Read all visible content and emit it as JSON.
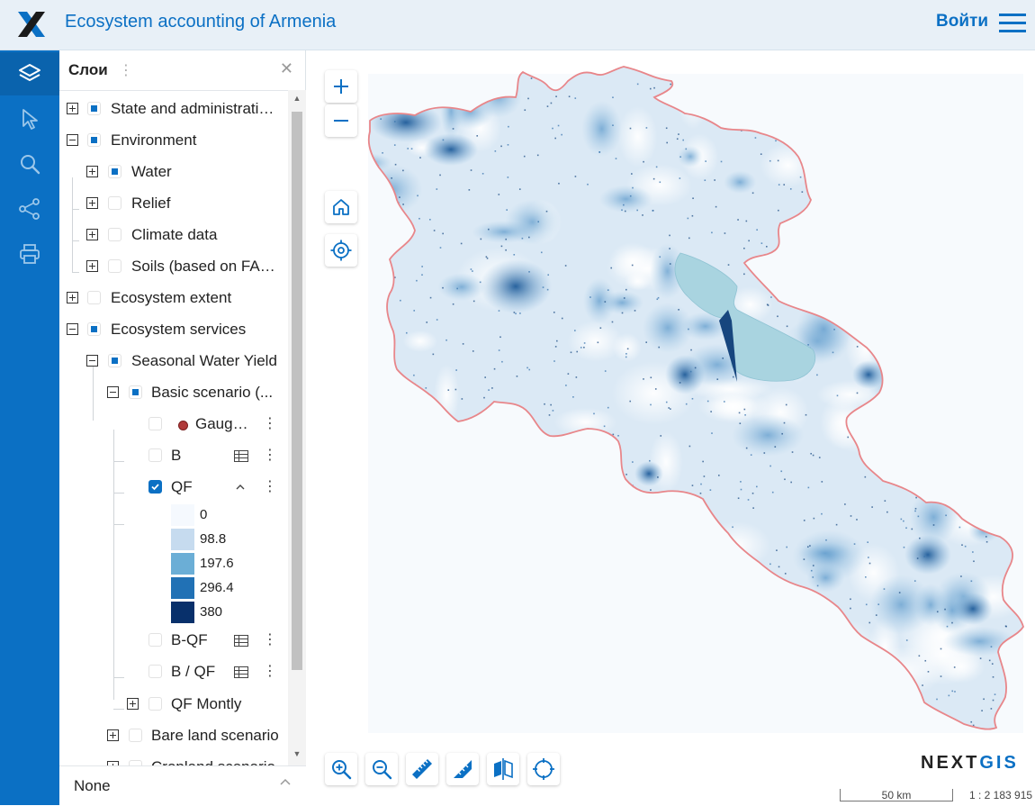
{
  "header": {
    "title": "Ecosystem accounting of Armenia",
    "login_label": "Войти",
    "logo_icon": "nextgis-x-logo",
    "menu_icon": "hamburger-icon"
  },
  "rail": {
    "items": [
      {
        "name": "layers",
        "icon": "layers-icon",
        "active": true
      },
      {
        "name": "select",
        "icon": "cursor-icon"
      },
      {
        "name": "search",
        "icon": "search-icon"
      },
      {
        "name": "share",
        "icon": "share-icon"
      },
      {
        "name": "print",
        "icon": "print-icon"
      }
    ]
  },
  "panel": {
    "title": "Слои",
    "tree": [
      {
        "label": "State and administrative borders"
      },
      {
        "label": "Environment"
      },
      {
        "label": "Water"
      },
      {
        "label": "Relief"
      },
      {
        "label": "Climate data"
      },
      {
        "label": "Soils (based on FAA..."
      },
      {
        "label": "Ecosystem extent"
      },
      {
        "label": "Ecosystem services"
      },
      {
        "label": "Seasonal Water Yield"
      },
      {
        "label": "Basic scenario (..."
      },
      {
        "label": "Gauging stations"
      },
      {
        "label": "B"
      },
      {
        "label": "QF"
      },
      {
        "label": "B-QF"
      },
      {
        "label": "B / QF"
      },
      {
        "label": "QF Montly"
      },
      {
        "label": "Bare land scenario"
      },
      {
        "label": "Cropland scenario"
      }
    ],
    "legend": [
      {
        "value": "0",
        "color": "#f5f9fe"
      },
      {
        "value": "98.8",
        "color": "#c6dbef"
      },
      {
        "value": "197.6",
        "color": "#6baed6"
      },
      {
        "value": "296.4",
        "color": "#2171b5"
      },
      {
        "value": "380",
        "color": "#08306b"
      }
    ],
    "basemap_label": "None"
  },
  "map": {
    "attribution": "NEXTGIS",
    "scale_label": "50 km",
    "scale_ratio": "1 : 2 183 915",
    "colors": {
      "boundary": "#e8868a",
      "lake": "#a9d4e0",
      "raster_light": "#e3eef8",
      "raster_mid": "#9ec6e4",
      "raster_dark": "#2d6aa8"
    }
  }
}
